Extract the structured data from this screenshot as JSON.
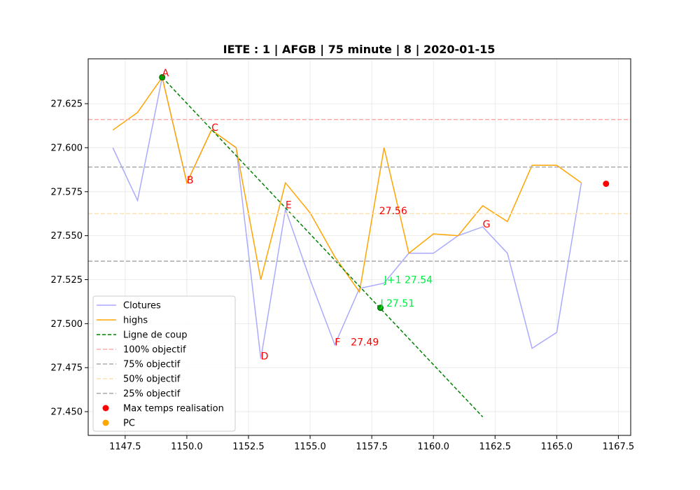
{
  "chart_data": {
    "type": "line",
    "title": "IETE : 1 | AFGB | 75 minute | 8 | 2020-01-15",
    "xlabel": "",
    "ylabel": "",
    "xlim": [
      1146.0,
      1168.0
    ],
    "ylim": [
      27.4365,
      27.6505
    ],
    "xticks": [
      1147.5,
      1150.0,
      1152.5,
      1155.0,
      1157.5,
      1160.0,
      1162.5,
      1165.0,
      1167.5
    ],
    "xtick_labels": [
      "1147.5",
      "1150.0",
      "1152.5",
      "1155.0",
      "1157.5",
      "1160.0",
      "1162.5",
      "1165.0",
      "1167.5"
    ],
    "yticks": [
      27.45,
      27.475,
      27.5,
      27.525,
      27.55,
      27.575,
      27.6,
      27.625
    ],
    "ytick_labels": [
      "27.450",
      "27.475",
      "27.500",
      "27.525",
      "27.550",
      "27.575",
      "27.600",
      "27.625"
    ],
    "grid": true,
    "legend_position": "lower-left",
    "series": [
      {
        "name": "Clotures",
        "kind": "line",
        "color": "#aaaaff",
        "x": [
          1147,
          1148,
          1149,
          1150,
          1151,
          1152,
          1153,
          1154,
          1155,
          1156,
          1157,
          1158,
          1159,
          1160,
          1161,
          1162,
          1163,
          1164,
          1165,
          1166
        ],
        "y": [
          27.6,
          27.57,
          27.64,
          27.58,
          27.61,
          27.6,
          27.48,
          27.565,
          27.525,
          27.488,
          27.52,
          27.523,
          27.54,
          27.54,
          27.55,
          27.555,
          27.54,
          27.486,
          27.495,
          27.58
        ]
      },
      {
        "name": "highs",
        "kind": "line",
        "color": "#ffa500",
        "x": [
          1147,
          1148,
          1149,
          1150,
          1151,
          1152,
          1153,
          1154,
          1155,
          1156,
          1157,
          1158,
          1159,
          1160,
          1161,
          1162,
          1163,
          1164,
          1165,
          1166
        ],
        "y": [
          27.61,
          27.62,
          27.64,
          27.58,
          27.61,
          27.6,
          27.525,
          27.58,
          27.563,
          27.538,
          27.518,
          27.6,
          27.54,
          27.551,
          27.55,
          27.567,
          27.558,
          27.59,
          27.59,
          27.58
        ]
      },
      {
        "name": "Ligne de coup",
        "kind": "dashed",
        "color": "#008000",
        "x": [
          1149,
          1162
        ],
        "y": [
          27.64,
          27.447
        ]
      },
      {
        "name": "100% objectif",
        "kind": "hline",
        "color": "#ffaaaa",
        "y": 27.616
      },
      {
        "name": "75% objectif",
        "kind": "hline",
        "color": "#aaaaaa",
        "y": 27.589
      },
      {
        "name": "50% objectif",
        "kind": "hline",
        "color": "#ffe0b0",
        "y": 27.5625
      },
      {
        "name": "25% objectif",
        "kind": "hline",
        "color": "#aaaaaa",
        "y": 27.5355
      },
      {
        "name": "Max temps realisation",
        "kind": "marker",
        "color": "#ff0000",
        "x": [
          1167
        ],
        "y": [
          27.5795
        ]
      },
      {
        "name": "PC",
        "kind": "marker",
        "color": "#ffa500",
        "x": [],
        "y": []
      }
    ],
    "green_points": [
      {
        "x": 1149,
        "y": 27.64
      },
      {
        "x": 1157.85,
        "y": 27.509
      }
    ],
    "annotations": [
      {
        "text": "A",
        "x": 1149.0,
        "y": 27.641,
        "color": "#ff0000"
      },
      {
        "text": "B",
        "x": 1150.0,
        "y": 27.58,
        "color": "#ff0000"
      },
      {
        "text": "C",
        "x": 1151.0,
        "y": 27.61,
        "color": "#ff0000"
      },
      {
        "text": "D",
        "x": 1153.0,
        "y": 27.48,
        "color": "#ff0000"
      },
      {
        "text": "E",
        "x": 1154.0,
        "y": 27.566,
        "color": "#ff0000"
      },
      {
        "text": "F",
        "x": 1156.0,
        "y": 27.488,
        "color": "#ff0000"
      },
      {
        "text": "27.49",
        "x": 1156.65,
        "y": 27.488,
        "color": "#ff0000"
      },
      {
        "text": "27.56",
        "x": 1157.8,
        "y": 27.5625,
        "color": "#ff0000"
      },
      {
        "text": "G",
        "x": 1162.0,
        "y": 27.555,
        "color": "#ff0000"
      },
      {
        "text": "J+1 27.54",
        "x": 1158.0,
        "y": 27.5235,
        "color": "#00ee44"
      },
      {
        "text": "J 27.51",
        "x": 1157.85,
        "y": 27.51,
        "color": "#00ee44"
      }
    ]
  }
}
